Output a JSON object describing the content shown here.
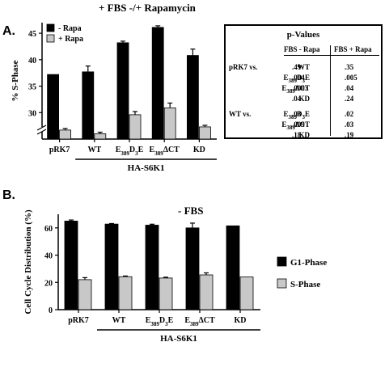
{
  "chart_data": [
    {
      "panel": "A.",
      "type": "bar",
      "title": "+ FBS  -/+ Rapamycin",
      "ylabel": "% S-Phase",
      "ylim": [
        25,
        47
      ],
      "yticks": [
        25,
        30,
        35,
        40,
        45
      ],
      "axis_break": true,
      "categories": [
        "pRK7",
        "WT",
        "E389D3E",
        "E389ΔCT",
        "KD"
      ],
      "group_label": "HA-S6K1",
      "legend_position": "top-left",
      "series": [
        {
          "name": "- Rapa",
          "color": "#000000",
          "values": [
            37.2,
            37.7,
            43.2,
            46.1,
            40.8
          ],
          "errors": [
            0,
            1.1,
            0.3,
            0.3,
            1.2
          ]
        },
        {
          "name": "+ Rapa",
          "color": "#c8c8c8",
          "values": [
            26.7,
            26.0,
            29.6,
            30.9,
            27.3
          ],
          "errors": [
            0.3,
            0.3,
            0.6,
            0.9,
            0.3
          ]
        }
      ]
    },
    {
      "panel": "B.",
      "type": "bar",
      "title": "- FBS",
      "ylabel": "Cell Cycle Distribution (%)",
      "ylim": [
        0,
        70
      ],
      "yticks": [
        0,
        20,
        40,
        60
      ],
      "categories": [
        "pRK7",
        "WT",
        "E389D3E",
        "E389ΔCT",
        "KD"
      ],
      "group_label": "HA-S6K1",
      "legend_position": "right",
      "series": [
        {
          "name": "G1-Phase",
          "color": "#000000",
          "values": [
            65.0,
            62.8,
            62.0,
            60.0,
            61.5
          ],
          "errors": [
            0.8,
            0.4,
            0.7,
            3.5,
            0
          ]
        },
        {
          "name": "S-Phase",
          "color": "#c8c8c8",
          "values": [
            22.0,
            24.2,
            23.2,
            25.5,
            24.0
          ],
          "errors": [
            1.5,
            0.5,
            0.6,
            1.5,
            0
          ]
        }
      ]
    }
  ],
  "pvalues": {
    "title": "p-Values",
    "col1": "FBS - Rapa",
    "col2": "FBS + Rapa",
    "rows": [
      {
        "ref": "pRK7 vs.",
        "cmp": "WT",
        "v1": ".49",
        "v2": ".35"
      },
      {
        "ref": "",
        "cmp": "E389D3E",
        "v1": ".004",
        "v2": ".005"
      },
      {
        "ref": "",
        "cmp": "E389ΔCT",
        "v1": ".0003",
        "v2": ".04"
      },
      {
        "ref": "",
        "cmp": "KD",
        "v1": ".04",
        "v2": ".24"
      },
      {
        "ref": "WT  vs.",
        "cmp": "E389D3E",
        "v1": ".03",
        "v2": ".02"
      },
      {
        "ref": "",
        "cmp": "E389ΔCT",
        "v1": ".009",
        "v2": ".03"
      },
      {
        "ref": "",
        "cmp": "KD",
        "v1": ".18",
        "v2": ".19"
      }
    ]
  }
}
